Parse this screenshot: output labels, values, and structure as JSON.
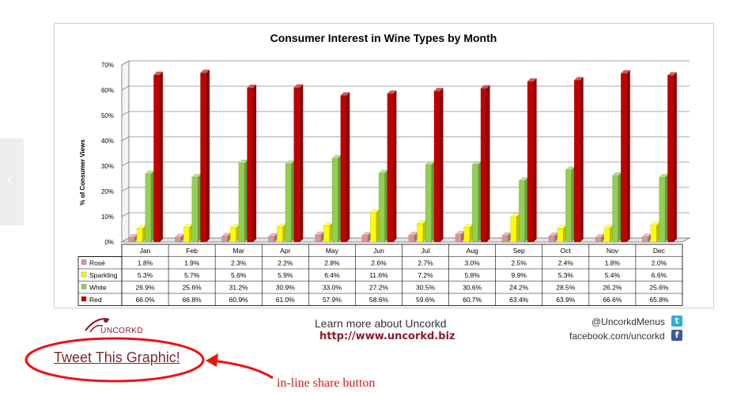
{
  "nav": {
    "prev_glyph": "‹"
  },
  "chart_data": {
    "type": "bar",
    "title": "Consumer Interest in Wine Types by Month",
    "ylabel": "% of Consumer Views",
    "ylim": [
      0,
      70
    ],
    "yticks": [
      "0%",
      "10%",
      "20%",
      "30%",
      "40%",
      "50%",
      "60%",
      "70%"
    ],
    "categories": [
      "Jan",
      "Feb",
      "Mar",
      "Apr",
      "May",
      "Jun",
      "Jul",
      "Aug",
      "Sep",
      "Oct",
      "Nov",
      "Dec"
    ],
    "series": [
      {
        "name": "Rosé",
        "color": "#d99694",
        "values": [
          1.8,
          1.9,
          2.3,
          2.2,
          2.8,
          2.6,
          2.7,
          3.0,
          2.5,
          2.4,
          1.8,
          2.0
        ],
        "labels": [
          "1.8%",
          "1.9%",
          "2.3%",
          "2.2%",
          "2.8%",
          "2.6%",
          "2.7%",
          "3.0%",
          "2.5%",
          "2.4%",
          "1.8%",
          "2.0%"
        ]
      },
      {
        "name": "Sparkling",
        "color": "#ffff00",
        "values": [
          5.3,
          5.7,
          5.6,
          5.9,
          6.4,
          11.6,
          7.2,
          5.8,
          9.9,
          5.3,
          5.4,
          6.6
        ],
        "labels": [
          "5.3%",
          "5.7%",
          "5.6%",
          "5.9%",
          "6.4%",
          "11.6%",
          "7.2%",
          "5.8%",
          "9.9%",
          "5.3%",
          "5.4%",
          "6.6%"
        ]
      },
      {
        "name": "White",
        "color": "#92d050",
        "values": [
          26.9,
          25.6,
          31.2,
          30.9,
          33.0,
          27.2,
          30.5,
          30.6,
          24.2,
          28.5,
          26.2,
          25.6
        ],
        "labels": [
          "26.9%",
          "25.6%",
          "31.2%",
          "30.9%",
          "33.0%",
          "27.2%",
          "30.5%",
          "30.6%",
          "24.2%",
          "28.5%",
          "26.2%",
          "25.6%"
        ]
      },
      {
        "name": "Red",
        "color": "#c00000",
        "values": [
          66.0,
          66.8,
          60.9,
          61.0,
          57.9,
          58.6,
          59.6,
          60.7,
          63.4,
          63.9,
          66.6,
          65.8
        ],
        "labels": [
          "66.0%",
          "66.8%",
          "60.9%",
          "61.0%",
          "57.9%",
          "58.6%",
          "59.6%",
          "60.7%",
          "63.4%",
          "63.9%",
          "66.6%",
          "65.8%"
        ]
      }
    ],
    "grid": true,
    "legend": "data-table"
  },
  "footer": {
    "logo_text": "UNCORKD",
    "learn_more": "Learn more about Uncorkd",
    "url": "http://www.uncorkd.biz",
    "twitter": "@UncorkdMenus",
    "facebook": "facebook.com/uncorkd"
  },
  "share": {
    "tweet_label": "Tweet This Graphic!",
    "annotation": "in-line share button"
  },
  "colors": {
    "brand": "#8b1a2b",
    "annotation": "#d31b1b",
    "twitter": "#2fa9e1",
    "facebook": "#3b5998"
  }
}
